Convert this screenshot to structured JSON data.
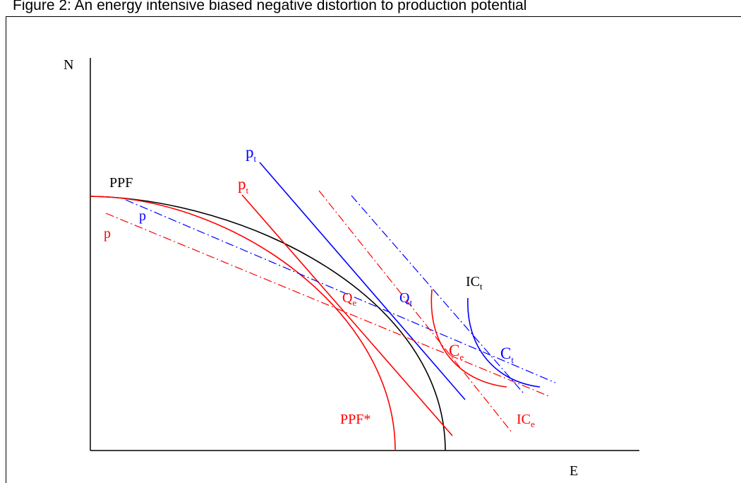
{
  "title": "Figure 2: An energy intensive biased negative distortion to production potential",
  "axes": {
    "y_label": "N",
    "x_label": "E"
  },
  "curve_labels": {
    "ppf": "PPF",
    "ppf_star": "PPF*",
    "pt_blue": {
      "base": "p",
      "sub": "t"
    },
    "pt_red": {
      "base": "p",
      "sub": "t"
    },
    "p_blue": "p",
    "p_red": "p",
    "q_e": {
      "base": "Q",
      "sub": "e"
    },
    "q_t": {
      "base": "Q",
      "sub": "t"
    },
    "c_e": {
      "base": "C",
      "sub": "e"
    },
    "c_t": {
      "base": "C",
      "sub": "t"
    },
    "ic_t": {
      "base": "IC",
      "sub": "t"
    },
    "ic_e": {
      "base": "IC",
      "sub": "e"
    }
  },
  "colors": {
    "black": "#000000",
    "blue": "#0000ff",
    "red": "#ff0000"
  }
}
